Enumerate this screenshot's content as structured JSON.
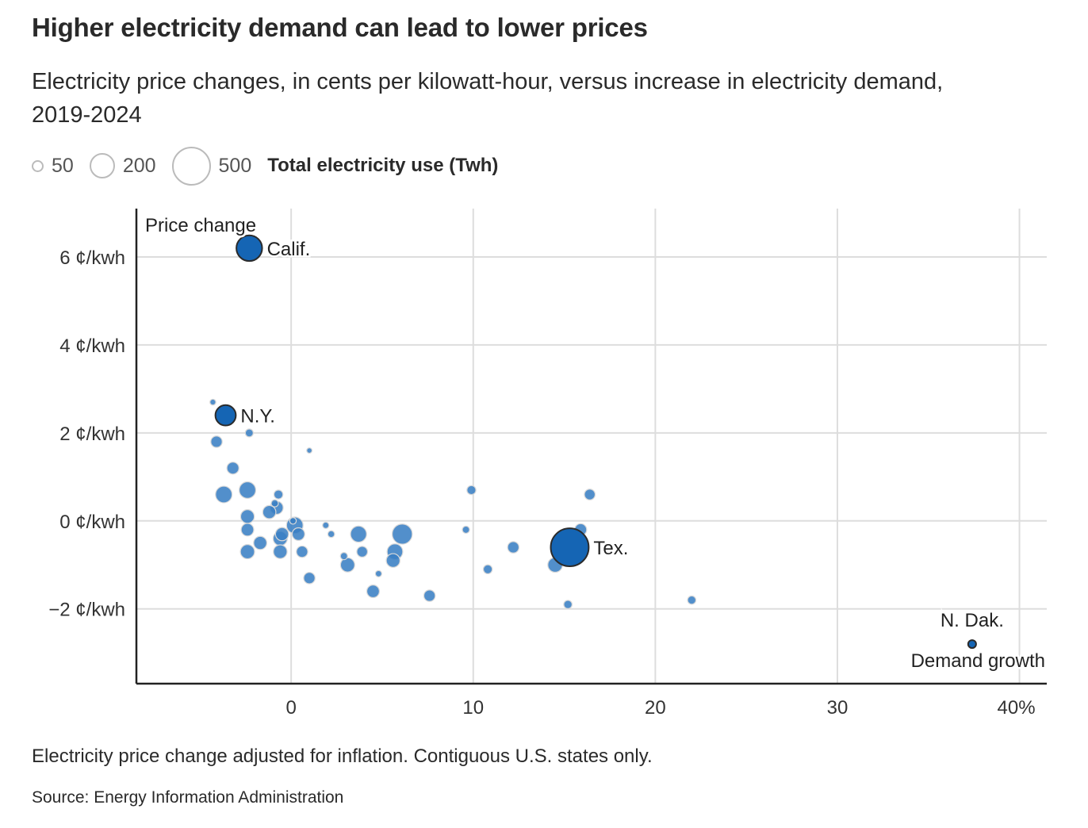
{
  "header": {
    "title": "Higher electricity demand can lead to lower prices",
    "subtitle": "Electricity price changes, in cents per kilowatt-hour, versus increase in electricity demand, 2019-2024"
  },
  "legend": {
    "items": [
      {
        "value": 50,
        "label": "50"
      },
      {
        "value": 200,
        "label": "200"
      },
      {
        "value": 500,
        "label": "500"
      }
    ],
    "title": "Total electricity use (Twh)"
  },
  "footer": {
    "note": "Electricity price change adjusted for inflation. Contiguous U.S. states only.",
    "source": "Source: Energy Information Administration"
  },
  "colors": {
    "bubble": "#3a7fc4",
    "highlight": "#1565b4",
    "grid": "#dddddd",
    "axis": "#222222"
  },
  "chart_data": {
    "type": "scatter",
    "title": "Higher electricity demand can lead to lower prices",
    "xlabel": "Demand growth",
    "ylabel": "Price change",
    "size_label": "Total electricity use (Twh)",
    "xlim": [
      -8.5,
      41.5
    ],
    "ylim": [
      -3.7,
      7.1
    ],
    "x_ticks": [
      {
        "value": 0,
        "label": "0"
      },
      {
        "value": 10,
        "label": "10"
      },
      {
        "value": 20,
        "label": "20"
      },
      {
        "value": 30,
        "label": "30"
      },
      {
        "value": 40,
        "label": "40%"
      }
    ],
    "y_ticks": [
      {
        "value": 6,
        "label": "6 ¢/kwh"
      },
      {
        "value": 4,
        "label": "4 ¢/kwh"
      },
      {
        "value": 2,
        "label": "2 ¢/kwh"
      },
      {
        "value": 0,
        "label": "0 ¢/kwh"
      },
      {
        "value": -2,
        "label": "−2 ¢/kwh"
      }
    ],
    "grid": true,
    "points": [
      {
        "x": -4.3,
        "y": 2.7,
        "size": 12
      },
      {
        "x": -4.1,
        "y": 1.8,
        "size": 45
      },
      {
        "x": -2.3,
        "y": 2.0,
        "size": 22
      },
      {
        "x": -3.2,
        "y": 1.2,
        "size": 50
      },
      {
        "x": -3.7,
        "y": 0.6,
        "size": 95
      },
      {
        "x": -2.4,
        "y": 0.7,
        "size": 95
      },
      {
        "x": -0.7,
        "y": 0.6,
        "size": 28
      },
      {
        "x": -0.9,
        "y": 0.4,
        "size": 18
      },
      {
        "x": -0.8,
        "y": 0.3,
        "size": 60
      },
      {
        "x": -1.2,
        "y": 0.2,
        "size": 60
      },
      {
        "x": -2.4,
        "y": 0.1,
        "size": 65
      },
      {
        "x": -2.4,
        "y": -0.2,
        "size": 55
      },
      {
        "x": -1.7,
        "y": -0.5,
        "size": 60
      },
      {
        "x": -2.4,
        "y": -0.7,
        "size": 70
      },
      {
        "x": -0.6,
        "y": -0.4,
        "size": 70
      },
      {
        "x": -0.5,
        "y": -0.3,
        "size": 60
      },
      {
        "x": 0.2,
        "y": -0.1,
        "size": 95
      },
      {
        "x": 0.1,
        "y": 0.0,
        "size": 15
      },
      {
        "x": 0.4,
        "y": -0.3,
        "size": 55
      },
      {
        "x": -0.6,
        "y": -0.7,
        "size": 65
      },
      {
        "x": 0.6,
        "y": -0.7,
        "size": 45
      },
      {
        "x": 1.0,
        "y": -1.3,
        "size": 45
      },
      {
        "x": 1.0,
        "y": 1.6,
        "size": 10
      },
      {
        "x": 1.9,
        "y": -0.1,
        "size": 14
      },
      {
        "x": 2.2,
        "y": -0.3,
        "size": 16
      },
      {
        "x": 2.9,
        "y": -0.8,
        "size": 18
      },
      {
        "x": 3.1,
        "y": -1.0,
        "size": 70
      },
      {
        "x": 3.7,
        "y": -0.3,
        "size": 90
      },
      {
        "x": 3.9,
        "y": -0.7,
        "size": 40
      },
      {
        "x": 4.5,
        "y": -1.6,
        "size": 55
      },
      {
        "x": 4.8,
        "y": -1.2,
        "size": 14
      },
      {
        "x": 5.7,
        "y": -0.7,
        "size": 85
      },
      {
        "x": 5.6,
        "y": -0.9,
        "size": 65
      },
      {
        "x": 6.1,
        "y": -0.3,
        "size": 140
      },
      {
        "x": 7.6,
        "y": -1.7,
        "size": 45
      },
      {
        "x": 9.6,
        "y": -0.2,
        "size": 18
      },
      {
        "x": 9.9,
        "y": 0.7,
        "size": 28
      },
      {
        "x": 10.8,
        "y": -1.1,
        "size": 28
      },
      {
        "x": 12.2,
        "y": -0.6,
        "size": 45
      },
      {
        "x": 14.5,
        "y": -1.0,
        "size": 75
      },
      {
        "x": 15.9,
        "y": -0.2,
        "size": 50
      },
      {
        "x": 16.4,
        "y": 0.6,
        "size": 40
      },
      {
        "x": 15.2,
        "y": -1.9,
        "size": 24
      },
      {
        "x": 22.0,
        "y": -1.8,
        "size": 24
      },
      {
        "x": -2.3,
        "y": 6.2,
        "size": 230,
        "label": "Calif.",
        "highlight": true,
        "label_pos": "right"
      },
      {
        "x": -3.6,
        "y": 2.4,
        "size": 145,
        "label": "N.Y.",
        "highlight": true,
        "label_pos": "right"
      },
      {
        "x": 15.3,
        "y": -0.6,
        "size": 500,
        "label": "Tex.",
        "highlight": true,
        "label_pos": "right"
      },
      {
        "x": 37.4,
        "y": -2.8,
        "size": 22,
        "label": "N. Dak.",
        "highlight": true,
        "label_pos": "above"
      }
    ]
  }
}
